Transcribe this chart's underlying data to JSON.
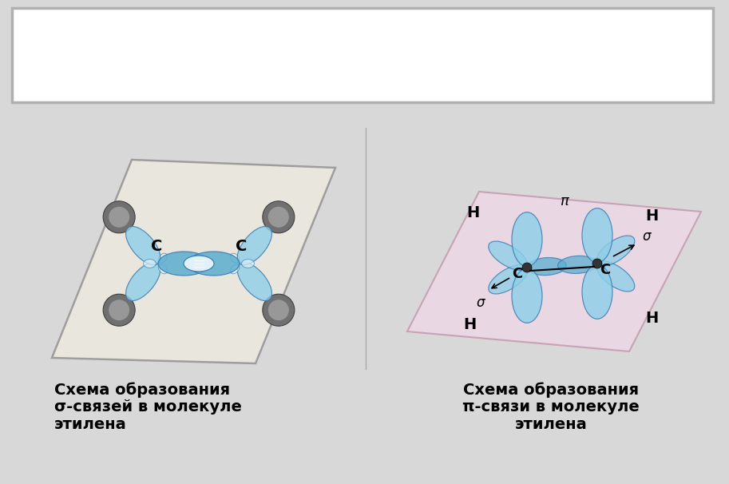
{
  "bg_color": "#d8d8d8",
  "white_box_color": "#ffffff",
  "white_box_border": "#b0b0b0",
  "light_blue": "#8ecfe8",
  "mid_blue": "#5baed0",
  "white_ish": "#e8f5fc",
  "dark_blue": "#3a7ab0",
  "plane_left_face": "#f0ece0",
  "plane_left_edge": "#888888",
  "plane_right_face": "#f0d8e8",
  "plane_right_edge": "#c090a8",
  "h_sphere_face": "#888888",
  "h_sphere_edge": "#444444",
  "left_label1": "Схема образования",
  "left_label2": "σ-связей в молекуле",
  "left_label3": "этилена",
  "right_label1": "Схема образования",
  "right_label2": "π-связи в молекуле",
  "right_label3": "этилена",
  "label_fontsize": 14
}
